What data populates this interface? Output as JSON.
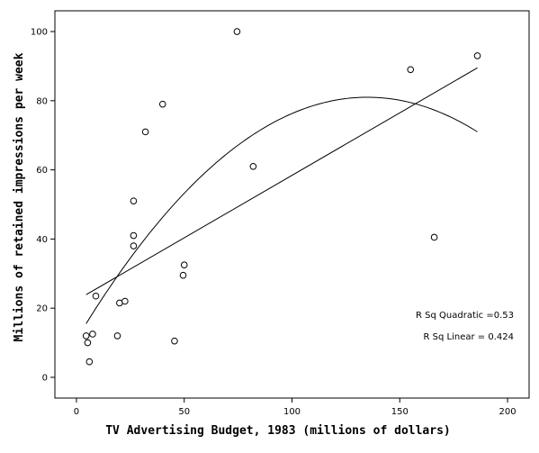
{
  "chart_data": {
    "type": "scatter",
    "title": "",
    "xlabel": "TV Advertising Budget, 1983 (millions of dollars)",
    "ylabel": "Millions of retained impressions per week",
    "xlim": [
      -10,
      210
    ],
    "ylim": [
      -6,
      106
    ],
    "x_ticks": [
      0,
      50,
      100,
      150,
      200
    ],
    "y_ticks": [
      0,
      20,
      40,
      60,
      80,
      100
    ],
    "grid": false,
    "marker": "open-circle",
    "points": [
      {
        "x": 4.5,
        "y": 12
      },
      {
        "x": 5.2,
        "y": 10
      },
      {
        "x": 6.0,
        "y": 4.5
      },
      {
        "x": 7.5,
        "y": 12.5
      },
      {
        "x": 9.0,
        "y": 23.5
      },
      {
        "x": 19.0,
        "y": 12
      },
      {
        "x": 20.0,
        "y": 21.5
      },
      {
        "x": 22.5,
        "y": 22
      },
      {
        "x": 26.5,
        "y": 38
      },
      {
        "x": 26.5,
        "y": 41
      },
      {
        "x": 26.5,
        "y": 51
      },
      {
        "x": 32.0,
        "y": 71
      },
      {
        "x": 40.0,
        "y": 79
      },
      {
        "x": 45.5,
        "y": 10.5
      },
      {
        "x": 49.5,
        "y": 29.5
      },
      {
        "x": 50.0,
        "y": 32.5
      },
      {
        "x": 74.5,
        "y": 100
      },
      {
        "x": 82.0,
        "y": 61
      },
      {
        "x": 155.0,
        "y": 89
      },
      {
        "x": 166.0,
        "y": 40.5
      },
      {
        "x": 186.0,
        "y": 93
      }
    ],
    "fits": [
      {
        "type": "linear",
        "x_range": [
          4.5,
          186
        ],
        "y_range": [
          23.9,
          89.5
        ]
      },
      {
        "type": "quadratic",
        "x_range": [
          4.5,
          186
        ],
        "vertex": [
          135,
          81
        ],
        "y_at_max_x": 71
      }
    ],
    "annotations": [
      "R Sq Quadratic =0.53",
      "R Sq Linear = 0.424"
    ]
  }
}
